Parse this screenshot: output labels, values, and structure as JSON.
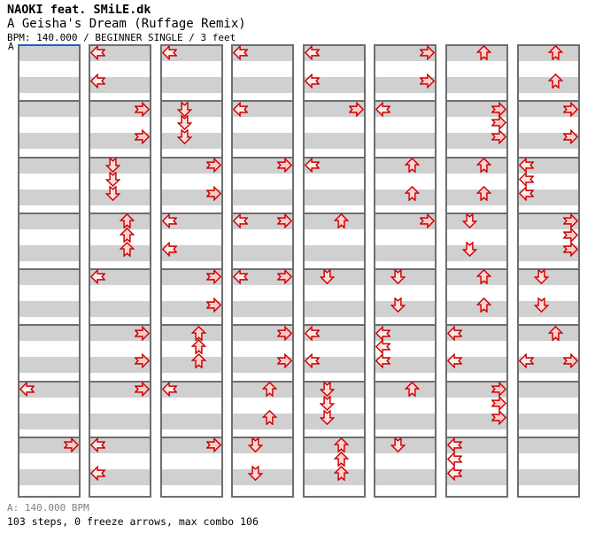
{
  "header": {
    "artist": "NAOKI feat. SMiLE.dk",
    "song_title": "A Geisha's Dream (Ruffage Remix)",
    "info_line": "BPM: 140.000 / BEGINNER SINGLE / 3 feet"
  },
  "section_marker": {
    "label": "A"
  },
  "footer": {
    "section_bpm_line": "A: 140.000 BPM",
    "stats_line": "103 steps, 0 freeze arrows, max combo 106"
  },
  "colors": {
    "stripe_gray": "#d0d0d0",
    "grid_border": "#6e6e6e",
    "marker_blue": "#1663cf",
    "arrow_outline": "#cc0000",
    "arrow_fill_left": "#ffecec",
    "arrow_fill_down": "#ffdede",
    "arrow_fill_up": "#ffd2d2",
    "arrow_fill_right": "#ffc9c9",
    "footer_gray": "#808080"
  },
  "chart_data": {
    "type": "step_chart",
    "song": "A Geisha's Dream (Ruffage Remix)",
    "artist": "NAOKI feat. SMiLE.dk",
    "bpm": 140.0,
    "difficulty": "BEGINNER SINGLE",
    "feet": 3,
    "steps": 103,
    "freeze_arrows": 0,
    "max_combo": 106,
    "columns": 8,
    "measures_per_column": 8,
    "beats_per_measure": 4,
    "lanes": [
      "left",
      "down",
      "up",
      "right"
    ],
    "arrow_format": "[column 1-8, measure 1-8, beat 1-4, direction L/D/U/R]",
    "arrows": [
      [
        1,
        7,
        1,
        "L"
      ],
      [
        1,
        8,
        1,
        "R"
      ],
      [
        2,
        1,
        1,
        "L"
      ],
      [
        2,
        1,
        3,
        "L"
      ],
      [
        2,
        2,
        1,
        "R"
      ],
      [
        2,
        2,
        3,
        "R"
      ],
      [
        2,
        3,
        1,
        "D"
      ],
      [
        2,
        3,
        2,
        "D"
      ],
      [
        2,
        3,
        3,
        "D"
      ],
      [
        2,
        4,
        1,
        "U"
      ],
      [
        2,
        4,
        2,
        "U"
      ],
      [
        2,
        4,
        3,
        "U"
      ],
      [
        2,
        5,
        1,
        "L"
      ],
      [
        2,
        6,
        1,
        "R"
      ],
      [
        2,
        6,
        3,
        "R"
      ],
      [
        2,
        7,
        1,
        "R"
      ],
      [
        2,
        8,
        1,
        "L"
      ],
      [
        2,
        8,
        3,
        "L"
      ],
      [
        3,
        1,
        1,
        "L"
      ],
      [
        3,
        2,
        1,
        "D"
      ],
      [
        3,
        2,
        2,
        "D"
      ],
      [
        3,
        2,
        3,
        "D"
      ],
      [
        3,
        3,
        1,
        "R"
      ],
      [
        3,
        3,
        3,
        "R"
      ],
      [
        3,
        4,
        1,
        "L"
      ],
      [
        3,
        4,
        3,
        "L"
      ],
      [
        3,
        5,
        1,
        "R"
      ],
      [
        3,
        5,
        3,
        "R"
      ],
      [
        3,
        6,
        1,
        "U"
      ],
      [
        3,
        6,
        2,
        "U"
      ],
      [
        3,
        6,
        3,
        "U"
      ],
      [
        3,
        7,
        1,
        "L"
      ],
      [
        3,
        8,
        1,
        "R"
      ],
      [
        4,
        1,
        1,
        "L"
      ],
      [
        4,
        2,
        1,
        "L"
      ],
      [
        4,
        3,
        1,
        "R"
      ],
      [
        4,
        4,
        1,
        "L"
      ],
      [
        4,
        4,
        1,
        "R"
      ],
      [
        4,
        5,
        1,
        "L"
      ],
      [
        4,
        5,
        1,
        "R"
      ],
      [
        4,
        6,
        1,
        "R"
      ],
      [
        4,
        6,
        3,
        "R"
      ],
      [
        4,
        7,
        1,
        "U"
      ],
      [
        4,
        7,
        3,
        "U"
      ],
      [
        4,
        8,
        1,
        "D"
      ],
      [
        4,
        8,
        3,
        "D"
      ],
      [
        5,
        1,
        1,
        "L"
      ],
      [
        5,
        1,
        3,
        "L"
      ],
      [
        5,
        2,
        1,
        "R"
      ],
      [
        5,
        3,
        1,
        "L"
      ],
      [
        5,
        4,
        1,
        "U"
      ],
      [
        5,
        5,
        1,
        "D"
      ],
      [
        5,
        6,
        1,
        "L"
      ],
      [
        5,
        6,
        3,
        "L"
      ],
      [
        5,
        7,
        1,
        "D"
      ],
      [
        5,
        7,
        2,
        "D"
      ],
      [
        5,
        7,
        3,
        "D"
      ],
      [
        5,
        8,
        1,
        "U"
      ],
      [
        5,
        8,
        2,
        "U"
      ],
      [
        5,
        8,
        3,
        "U"
      ],
      [
        6,
        1,
        1,
        "R"
      ],
      [
        6,
        1,
        3,
        "R"
      ],
      [
        6,
        2,
        1,
        "L"
      ],
      [
        6,
        3,
        1,
        "U"
      ],
      [
        6,
        3,
        3,
        "U"
      ],
      [
        6,
        4,
        1,
        "R"
      ],
      [
        6,
        5,
        1,
        "D"
      ],
      [
        6,
        5,
        3,
        "D"
      ],
      [
        6,
        6,
        1,
        "L"
      ],
      [
        6,
        6,
        2,
        "L"
      ],
      [
        6,
        6,
        3,
        "L"
      ],
      [
        6,
        7,
        1,
        "U"
      ],
      [
        6,
        8,
        1,
        "D"
      ],
      [
        7,
        1,
        1,
        "U"
      ],
      [
        7,
        2,
        1,
        "R"
      ],
      [
        7,
        2,
        2,
        "R"
      ],
      [
        7,
        2,
        3,
        "R"
      ],
      [
        7,
        3,
        1,
        "U"
      ],
      [
        7,
        3,
        3,
        "U"
      ],
      [
        7,
        4,
        1,
        "D"
      ],
      [
        7,
        4,
        3,
        "D"
      ],
      [
        7,
        5,
        1,
        "U"
      ],
      [
        7,
        5,
        3,
        "U"
      ],
      [
        7,
        6,
        1,
        "L"
      ],
      [
        7,
        6,
        3,
        "L"
      ],
      [
        7,
        7,
        1,
        "R"
      ],
      [
        7,
        7,
        2,
        "R"
      ],
      [
        7,
        7,
        3,
        "R"
      ],
      [
        7,
        8,
        1,
        "L"
      ],
      [
        7,
        8,
        2,
        "L"
      ],
      [
        7,
        8,
        3,
        "L"
      ],
      [
        8,
        1,
        1,
        "U"
      ],
      [
        8,
        1,
        3,
        "U"
      ],
      [
        8,
        2,
        1,
        "R"
      ],
      [
        8,
        2,
        3,
        "R"
      ],
      [
        8,
        3,
        1,
        "L"
      ],
      [
        8,
        3,
        2,
        "L"
      ],
      [
        8,
        3,
        3,
        "L"
      ],
      [
        8,
        4,
        1,
        "R"
      ],
      [
        8,
        4,
        2,
        "R"
      ],
      [
        8,
        4,
        3,
        "R"
      ],
      [
        8,
        5,
        1,
        "D"
      ],
      [
        8,
        5,
        3,
        "D"
      ],
      [
        8,
        6,
        1,
        "U"
      ],
      [
        8,
        6,
        3,
        "L"
      ],
      [
        8,
        6,
        3,
        "R"
      ]
    ]
  }
}
